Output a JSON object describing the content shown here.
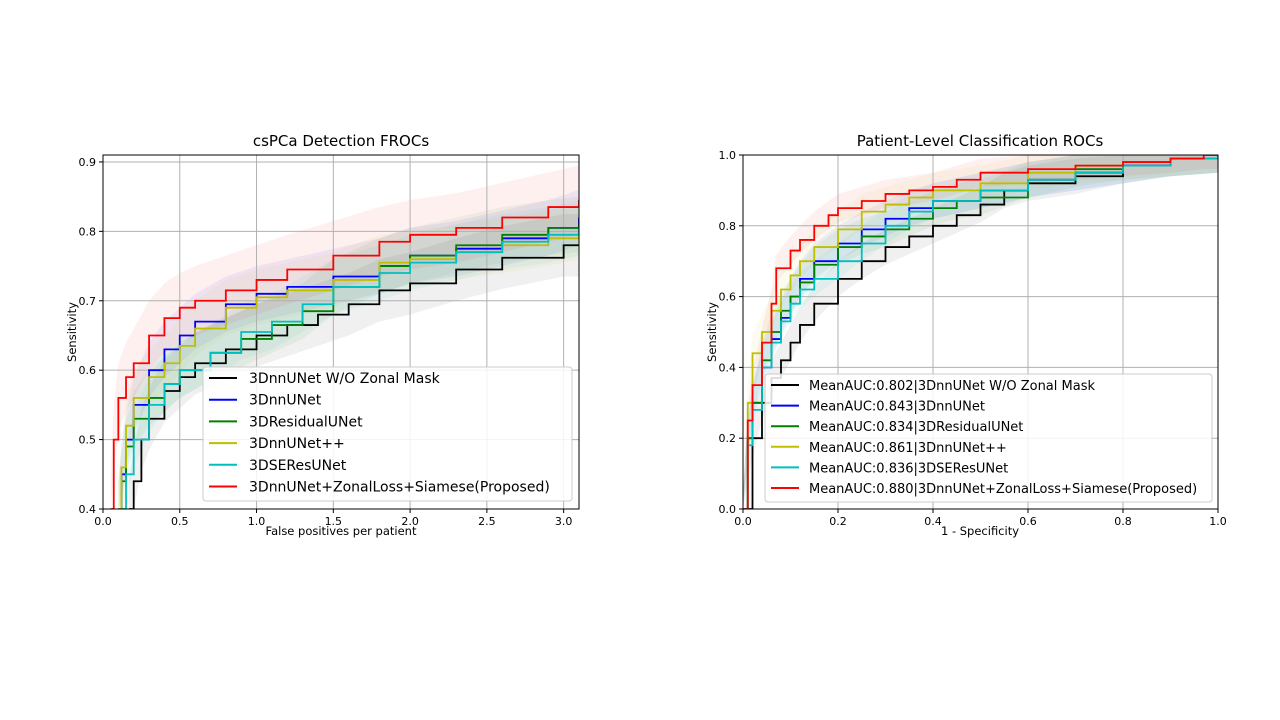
{
  "chart_data": [
    {
      "type": "line",
      "title": "csPCa Detection FROCs",
      "xlabel": "False positives per patient",
      "ylabel": "Sensitivity",
      "xlim": [
        0.0,
        3.1
      ],
      "ylim": [
        0.4,
        0.91
      ],
      "xticks": [
        0.0,
        0.5,
        1.0,
        1.5,
        2.0,
        2.5,
        3.0
      ],
      "xtick_labels": [
        "0.0",
        "0.5",
        "1.0",
        "1.5",
        "2.0",
        "2.5",
        "3.0"
      ],
      "yticks": [
        0.4,
        0.5,
        0.6,
        0.7,
        0.8,
        0.9
      ],
      "ytick_labels": [
        "0.4",
        "0.5",
        "0.6",
        "0.7",
        "0.8",
        "0.9"
      ],
      "grid": true,
      "legend_position": "lower-right",
      "series": [
        {
          "name": "3DnnUNet W/O Zonal Mask",
          "color": "#000000",
          "band": 0.045,
          "x": [
            0.17,
            0.2,
            0.25,
            0.3,
            0.4,
            0.5,
            0.6,
            0.8,
            1.0,
            1.2,
            1.4,
            1.6,
            1.8,
            2.0,
            2.3,
            2.6,
            3.0,
            3.1
          ],
          "y": [
            0.4,
            0.44,
            0.5,
            0.53,
            0.57,
            0.59,
            0.61,
            0.63,
            0.65,
            0.665,
            0.68,
            0.695,
            0.715,
            0.725,
            0.745,
            0.762,
            0.78,
            0.78
          ]
        },
        {
          "name": "3DnnUNet",
          "color": "#0000ff",
          "band": 0.04,
          "x": [
            0.1,
            0.12,
            0.15,
            0.2,
            0.3,
            0.4,
            0.5,
            0.6,
            0.8,
            1.0,
            1.2,
            1.5,
            1.8,
            2.0,
            2.3,
            2.6,
            2.9,
            3.1
          ],
          "y": [
            0.4,
            0.45,
            0.5,
            0.55,
            0.6,
            0.63,
            0.65,
            0.67,
            0.695,
            0.71,
            0.72,
            0.735,
            0.75,
            0.765,
            0.775,
            0.79,
            0.805,
            0.82
          ]
        },
        {
          "name": "3DResidualUNet",
          "color": "#008000",
          "band": 0.04,
          "x": [
            0.1,
            0.12,
            0.15,
            0.2,
            0.3,
            0.4,
            0.5,
            0.7,
            0.9,
            1.1,
            1.3,
            1.5,
            1.8,
            2.0,
            2.3,
            2.6,
            2.9,
            3.1
          ],
          "y": [
            0.4,
            0.44,
            0.49,
            0.53,
            0.56,
            0.58,
            0.6,
            0.625,
            0.645,
            0.665,
            0.685,
            0.72,
            0.75,
            0.765,
            0.78,
            0.795,
            0.805,
            0.81
          ]
        },
        {
          "name": "3DnnUNet++",
          "color": "#bfbf00",
          "band": 0.04,
          "x": [
            0.1,
            0.12,
            0.15,
            0.2,
            0.3,
            0.4,
            0.5,
            0.6,
            0.8,
            1.0,
            1.2,
            1.5,
            1.8,
            2.0,
            2.3,
            2.6,
            2.9,
            3.1
          ],
          "y": [
            0.4,
            0.46,
            0.52,
            0.56,
            0.59,
            0.61,
            0.635,
            0.66,
            0.69,
            0.705,
            0.715,
            0.73,
            0.755,
            0.76,
            0.77,
            0.78,
            0.79,
            0.8
          ]
        },
        {
          "name": "3DSEResUNet",
          "color": "#00bfbf",
          "band": 0.04,
          "x": [
            0.12,
            0.15,
            0.2,
            0.3,
            0.4,
            0.5,
            0.7,
            0.9,
            1.1,
            1.3,
            1.5,
            1.8,
            2.0,
            2.3,
            2.6,
            2.9,
            3.1
          ],
          "y": [
            0.4,
            0.45,
            0.5,
            0.55,
            0.58,
            0.6,
            0.625,
            0.655,
            0.67,
            0.695,
            0.72,
            0.74,
            0.755,
            0.77,
            0.785,
            0.795,
            0.805
          ]
        },
        {
          "name": "3DnnUNet+ZonalLoss+Siamese(Proposed)",
          "color": "#ff0000",
          "band": 0.05,
          "x": [
            0.05,
            0.07,
            0.1,
            0.15,
            0.2,
            0.3,
            0.4,
            0.5,
            0.6,
            0.8,
            1.0,
            1.2,
            1.5,
            1.8,
            2.0,
            2.3,
            2.6,
            2.9,
            3.1
          ],
          "y": [
            0.4,
            0.5,
            0.56,
            0.59,
            0.61,
            0.65,
            0.675,
            0.69,
            0.7,
            0.715,
            0.73,
            0.745,
            0.765,
            0.785,
            0.795,
            0.805,
            0.82,
            0.835,
            0.845
          ]
        }
      ]
    },
    {
      "type": "line",
      "title": "Patient-Level Classification ROCs",
      "xlabel": "1 - Specificity",
      "ylabel": "Sensitivity",
      "xlim": [
        0.0,
        1.0
      ],
      "ylim": [
        0.0,
        1.0
      ],
      "xticks": [
        0.0,
        0.2,
        0.4,
        0.6,
        0.8,
        1.0
      ],
      "xtick_labels": [
        "0.0",
        "0.2",
        "0.4",
        "0.6",
        "0.8",
        "1.0"
      ],
      "yticks": [
        0.0,
        0.2,
        0.4,
        0.6,
        0.8,
        1.0
      ],
      "ytick_labels": [
        "0.0",
        "0.2",
        "0.4",
        "0.6",
        "0.8",
        "1.0"
      ],
      "grid": true,
      "legend_position": "lower-right",
      "series": [
        {
          "name": "MeanAUC:0.802|3DnnUNet W/O Zonal Mask",
          "color": "#000000",
          "band": 0.05,
          "x": [
            0.0,
            0.02,
            0.04,
            0.06,
            0.08,
            0.1,
            0.12,
            0.15,
            0.2,
            0.25,
            0.3,
            0.35,
            0.4,
            0.45,
            0.5,
            0.55,
            0.6,
            0.7,
            0.8,
            0.9,
            1.0
          ],
          "y": [
            0.0,
            0.2,
            0.3,
            0.37,
            0.42,
            0.47,
            0.52,
            0.58,
            0.65,
            0.7,
            0.74,
            0.77,
            0.8,
            0.83,
            0.86,
            0.9,
            0.92,
            0.94,
            0.97,
            0.99,
            1.0
          ]
        },
        {
          "name": "MeanAUC:0.843|3DnnUNet",
          "color": "#0000ff",
          "band": 0.05,
          "x": [
            0.0,
            0.01,
            0.02,
            0.04,
            0.06,
            0.08,
            0.1,
            0.12,
            0.15,
            0.2,
            0.25,
            0.3,
            0.35,
            0.4,
            0.5,
            0.6,
            0.7,
            0.8,
            0.9,
            1.0
          ],
          "y": [
            0.0,
            0.2,
            0.3,
            0.4,
            0.48,
            0.54,
            0.6,
            0.65,
            0.7,
            0.75,
            0.79,
            0.82,
            0.85,
            0.87,
            0.9,
            0.93,
            0.95,
            0.97,
            0.99,
            1.0
          ]
        },
        {
          "name": "MeanAUC:0.834|3DResidualUNet",
          "color": "#008000",
          "band": 0.05,
          "x": [
            0.0,
            0.01,
            0.02,
            0.04,
            0.06,
            0.08,
            0.1,
            0.12,
            0.15,
            0.2,
            0.25,
            0.3,
            0.35,
            0.4,
            0.45,
            0.5,
            0.6,
            0.7,
            0.8,
            0.9,
            1.0
          ],
          "y": [
            0.0,
            0.2,
            0.3,
            0.42,
            0.5,
            0.56,
            0.6,
            0.64,
            0.69,
            0.74,
            0.77,
            0.79,
            0.82,
            0.85,
            0.87,
            0.88,
            0.93,
            0.96,
            0.98,
            0.99,
            1.0
          ]
        },
        {
          "name": "MeanAUC:0.861|3DnnUNet++",
          "color": "#bfbf00",
          "band": 0.05,
          "x": [
            0.0,
            0.01,
            0.02,
            0.04,
            0.06,
            0.08,
            0.1,
            0.12,
            0.15,
            0.2,
            0.25,
            0.3,
            0.35,
            0.4,
            0.5,
            0.6,
            0.7,
            0.8,
            0.9,
            1.0
          ],
          "y": [
            0.0,
            0.3,
            0.44,
            0.5,
            0.56,
            0.62,
            0.66,
            0.7,
            0.74,
            0.79,
            0.84,
            0.86,
            0.88,
            0.9,
            0.92,
            0.95,
            0.97,
            0.98,
            0.99,
            1.0
          ]
        },
        {
          "name": "MeanAUC:0.836|3DSEResUNet",
          "color": "#00bfbf",
          "band": 0.05,
          "x": [
            0.0,
            0.01,
            0.02,
            0.04,
            0.06,
            0.08,
            0.1,
            0.12,
            0.15,
            0.2,
            0.25,
            0.3,
            0.35,
            0.4,
            0.5,
            0.6,
            0.7,
            0.8,
            0.9,
            1.0
          ],
          "y": [
            0.0,
            0.18,
            0.28,
            0.4,
            0.47,
            0.53,
            0.58,
            0.62,
            0.65,
            0.7,
            0.75,
            0.8,
            0.84,
            0.87,
            0.9,
            0.93,
            0.95,
            0.97,
            0.99,
            1.0
          ]
        },
        {
          "name": "MeanAUC:0.880|3DnnUNet+ZonalLoss+Siamese(Proposed)",
          "color": "#ff0000",
          "band": 0.04,
          "x": [
            0.0,
            0.01,
            0.02,
            0.04,
            0.06,
            0.07,
            0.1,
            0.12,
            0.15,
            0.18,
            0.2,
            0.25,
            0.3,
            0.35,
            0.4,
            0.45,
            0.5,
            0.6,
            0.7,
            0.8,
            0.9,
            0.97,
            1.0
          ],
          "y": [
            0.0,
            0.25,
            0.35,
            0.47,
            0.58,
            0.68,
            0.73,
            0.76,
            0.8,
            0.83,
            0.85,
            0.87,
            0.89,
            0.9,
            0.91,
            0.93,
            0.95,
            0.96,
            0.97,
            0.98,
            0.99,
            1.0,
            1.0
          ]
        }
      ]
    }
  ]
}
